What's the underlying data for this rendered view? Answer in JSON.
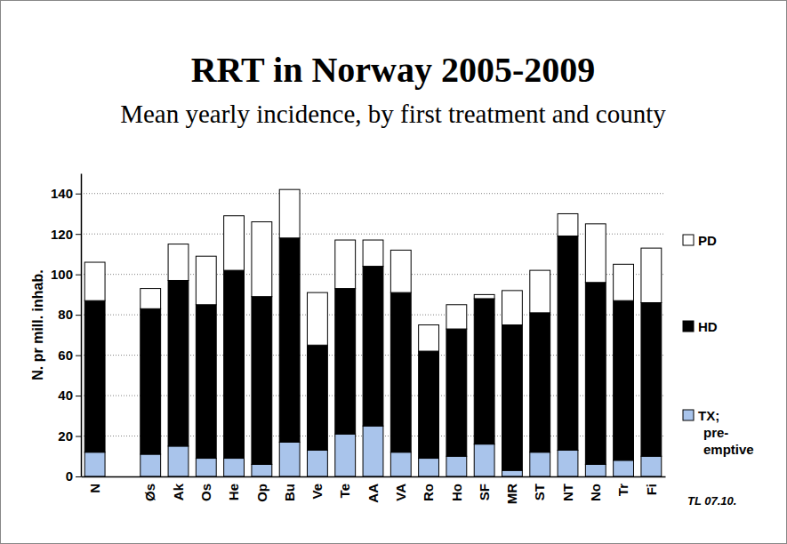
{
  "chart_data": {
    "type": "bar",
    "stacked": true,
    "title": "RRT in Norway 2005-2009",
    "subtitle": "Mean yearly incidence, by first treatment and county",
    "y_label": "N. pr mill. inhab.",
    "annotation": "TL 07.10.",
    "categories": [
      "N",
      null,
      "Øs",
      "Ak",
      "Os",
      "He",
      "Op",
      "Bu",
      "Ve",
      "Te",
      "AA",
      "VA",
      "Ro",
      "Ho",
      "SF",
      "MR",
      "ST",
      "NT",
      "No",
      "Tr",
      "Fi"
    ],
    "series": [
      {
        "name": "TX; pre-emptive",
        "color": "#a9c4eb",
        "values": [
          12,
          null,
          11,
          15,
          9,
          9,
          6,
          17,
          13,
          21,
          25,
          12,
          9,
          10,
          16,
          3,
          12,
          13,
          6,
          8,
          10
        ]
      },
      {
        "name": "HD",
        "color": "#000000",
        "values": [
          75,
          null,
          72,
          82,
          76,
          93,
          83,
          101,
          52,
          72,
          79,
          79,
          53,
          63,
          72,
          72,
          69,
          106,
          90,
          79,
          76
        ]
      },
      {
        "name": "PD",
        "color": "#ffffff",
        "values": [
          19,
          null,
          10,
          18,
          24,
          27,
          37,
          24,
          26,
          24,
          13,
          21,
          13,
          12,
          2,
          17,
          21,
          11,
          29,
          18,
          27
        ]
      }
    ],
    "ylim": [
      0,
      150
    ],
    "yticks": [
      0,
      20,
      40,
      60,
      80,
      100,
      120,
      140
    ],
    "grid": true,
    "legend": "right"
  }
}
